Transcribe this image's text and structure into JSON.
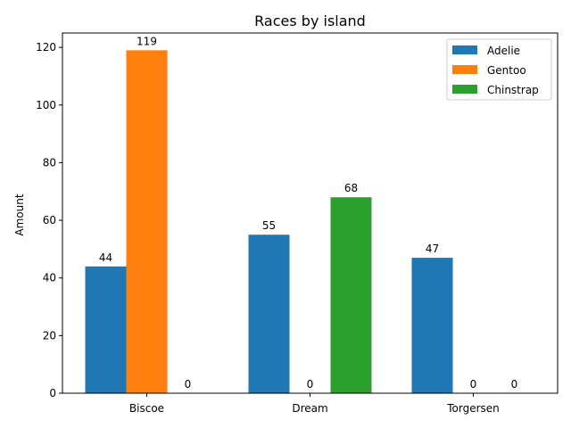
{
  "chart_data": {
    "type": "bar",
    "title": "Races by island",
    "xlabel": "",
    "ylabel": "Amount",
    "categories": [
      "Biscoe",
      "Dream",
      "Torgersen"
    ],
    "series": [
      {
        "name": "Adelie",
        "values": [
          44,
          55,
          47
        ],
        "color": "#1f77b4"
      },
      {
        "name": "Gentoo",
        "values": [
          119,
          0,
          0
        ],
        "color": "#ff7f0e"
      },
      {
        "name": "Chinstrap",
        "values": [
          0,
          68,
          0
        ],
        "color": "#2ca02c"
      }
    ],
    "yticks": [
      0,
      20,
      40,
      60,
      80,
      100,
      120
    ],
    "ylim": [
      0,
      125
    ],
    "grid": false,
    "legend_position": "top-right"
  }
}
